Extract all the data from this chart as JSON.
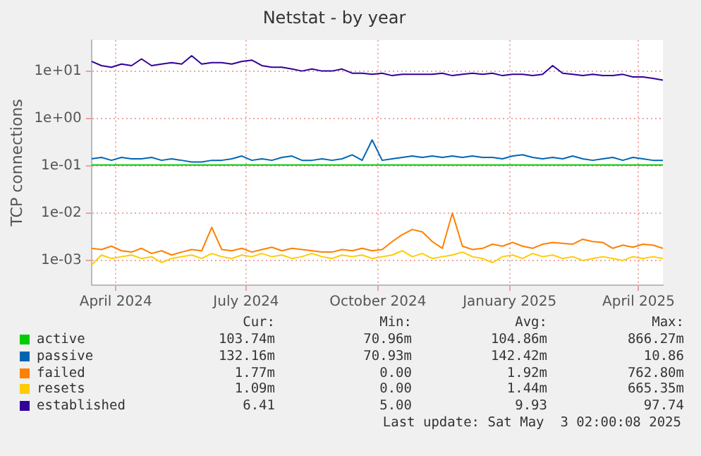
{
  "chart_data": {
    "type": "line",
    "title": "Netstat - by year",
    "ylabel": "TCP connections",
    "log": "y",
    "grid": true,
    "legend": "bottom",
    "marker": "none",
    "line_style": "solid",
    "ylim": [
      0.0003,
      45
    ],
    "yticks": [
      {
        "value": 0.001,
        "label": "1e-03"
      },
      {
        "value": 0.01,
        "label": "1e-02"
      },
      {
        "value": 0.1,
        "label": "1e-01"
      },
      {
        "value": 1,
        "label": "1e+00"
      },
      {
        "value": 10,
        "label": "1e+01"
      }
    ],
    "xlim": [
      "2024-03-30",
      "2025-05-03"
    ],
    "xticks": [
      {
        "value": "2024-04-16",
        "label": "April 2024"
      },
      {
        "value": "2024-07-16",
        "label": "July 2024"
      },
      {
        "value": "2024-10-16",
        "label": "October 2024"
      },
      {
        "value": "2025-01-16",
        "label": "January 2025"
      },
      {
        "value": "2025-04-16",
        "label": "April 2025"
      }
    ],
    "x": [
      "2024-03-30",
      "2024-04-06",
      "2024-04-13",
      "2024-04-20",
      "2024-04-27",
      "2024-05-04",
      "2024-05-11",
      "2024-05-18",
      "2024-05-25",
      "2024-06-01",
      "2024-06-08",
      "2024-06-15",
      "2024-06-22",
      "2024-06-29",
      "2024-07-06",
      "2024-07-13",
      "2024-07-20",
      "2024-07-27",
      "2024-08-03",
      "2024-08-10",
      "2024-08-17",
      "2024-08-24",
      "2024-08-31",
      "2024-09-07",
      "2024-09-14",
      "2024-09-21",
      "2024-09-28",
      "2024-10-05",
      "2024-10-12",
      "2024-10-19",
      "2024-10-26",
      "2024-11-02",
      "2024-11-09",
      "2024-11-16",
      "2024-11-23",
      "2024-11-30",
      "2024-12-07",
      "2024-12-14",
      "2024-12-21",
      "2024-12-28",
      "2025-01-04",
      "2025-01-11",
      "2025-01-18",
      "2025-01-25",
      "2025-02-01",
      "2025-02-08",
      "2025-02-15",
      "2025-02-22",
      "2025-03-01",
      "2025-03-08",
      "2025-03-15",
      "2025-03-22",
      "2025-03-29",
      "2025-04-05",
      "2025-04-12",
      "2025-04-19",
      "2025-04-26",
      "2025-05-03"
    ],
    "series": [
      {
        "name": "active",
        "color": "#00cc00",
        "values": [
          0.104,
          0.104,
          0.104,
          0.104,
          0.104,
          0.104,
          0.104,
          0.104,
          0.104,
          0.104,
          0.104,
          0.104,
          0.104,
          0.104,
          0.104,
          0.104,
          0.104,
          0.104,
          0.104,
          0.104,
          0.104,
          0.104,
          0.104,
          0.104,
          0.104,
          0.104,
          0.104,
          0.104,
          0.104,
          0.104,
          0.104,
          0.104,
          0.104,
          0.104,
          0.104,
          0.104,
          0.104,
          0.104,
          0.104,
          0.104,
          0.104,
          0.104,
          0.104,
          0.104,
          0.104,
          0.104,
          0.104,
          0.104,
          0.104,
          0.104,
          0.104,
          0.104,
          0.104,
          0.104,
          0.104,
          0.104,
          0.104,
          0.104
        ]
      },
      {
        "name": "passive",
        "color": "#0066b3",
        "values": [
          0.14,
          0.15,
          0.13,
          0.15,
          0.14,
          0.14,
          0.15,
          0.13,
          0.14,
          0.13,
          0.12,
          0.12,
          0.13,
          0.13,
          0.14,
          0.16,
          0.13,
          0.14,
          0.13,
          0.15,
          0.16,
          0.13,
          0.13,
          0.14,
          0.13,
          0.14,
          0.17,
          0.13,
          0.35,
          0.13,
          0.14,
          0.15,
          0.16,
          0.15,
          0.16,
          0.15,
          0.16,
          0.15,
          0.16,
          0.15,
          0.15,
          0.14,
          0.16,
          0.17,
          0.15,
          0.14,
          0.15,
          0.14,
          0.16,
          0.14,
          0.13,
          0.14,
          0.15,
          0.13,
          0.15,
          0.14,
          0.13,
          0.13
        ]
      },
      {
        "name": "failed",
        "color": "#ff8000",
        "values": [
          0.0018,
          0.0017,
          0.002,
          0.0016,
          0.0015,
          0.0018,
          0.0014,
          0.0016,
          0.0013,
          0.0015,
          0.0017,
          0.0016,
          0.005,
          0.0017,
          0.0016,
          0.0018,
          0.0015,
          0.0017,
          0.0019,
          0.0016,
          0.0018,
          0.0017,
          0.0016,
          0.0015,
          0.0015,
          0.0017,
          0.0016,
          0.0018,
          0.0016,
          0.0017,
          0.0025,
          0.0035,
          0.0045,
          0.004,
          0.0025,
          0.0018,
          0.01,
          0.002,
          0.0017,
          0.0018,
          0.0022,
          0.002,
          0.0024,
          0.002,
          0.0018,
          0.0022,
          0.0024,
          0.0023,
          0.0022,
          0.0028,
          0.0025,
          0.0024,
          0.0018,
          0.0021,
          0.0019,
          0.0022,
          0.0021,
          0.0018
        ]
      },
      {
        "name": "resets",
        "color": "#ffcc00",
        "values": [
          0.0008,
          0.0013,
          0.0011,
          0.0012,
          0.0013,
          0.0011,
          0.0012,
          0.0009,
          0.0011,
          0.0012,
          0.0013,
          0.0011,
          0.0014,
          0.0012,
          0.0011,
          0.0013,
          0.0012,
          0.0014,
          0.0012,
          0.0013,
          0.0011,
          0.0012,
          0.0014,
          0.0012,
          0.0011,
          0.0013,
          0.0012,
          0.0013,
          0.0011,
          0.0012,
          0.0013,
          0.0016,
          0.0012,
          0.0014,
          0.0011,
          0.0012,
          0.0013,
          0.0015,
          0.0012,
          0.0011,
          0.0009,
          0.0012,
          0.0013,
          0.0011,
          0.0014,
          0.0012,
          0.0013,
          0.0011,
          0.0012,
          0.001,
          0.0011,
          0.0012,
          0.0011,
          0.001,
          0.0012,
          0.0011,
          0.0012,
          0.0011
        ]
      },
      {
        "name": "established",
        "color": "#330099",
        "values": [
          16,
          13,
          12,
          14,
          13,
          18,
          13,
          14,
          15,
          14,
          21,
          14,
          15,
          15,
          14,
          16,
          17,
          13,
          12,
          12,
          11,
          10,
          11,
          10,
          10,
          11,
          9,
          9,
          8.5,
          9,
          8,
          8.5,
          8.5,
          8.5,
          8.5,
          9,
          8,
          8.5,
          9,
          8.5,
          9,
          8,
          8.5,
          8.5,
          8,
          8.5,
          13,
          9,
          8.5,
          8,
          8.5,
          8,
          8,
          8.5,
          7.5,
          7.5,
          7,
          6.4
        ]
      }
    ],
    "annotations": [
      "Cur:",
      "Min:",
      "Avg:",
      "Max:",
      "103.74m",
      "70.96m",
      "104.86m",
      "866.27m",
      "132.16m",
      "70.93m",
      "142.42m",
      "10.86",
      "1.77m",
      "0.00",
      "1.92m",
      "762.80m",
      "1.09m",
      "0.00",
      "1.44m",
      "665.35m",
      "6.41",
      "5.00",
      "9.93",
      "97.74",
      "Last update: Sat May  3 02:00:08 2025"
    ]
  }
}
